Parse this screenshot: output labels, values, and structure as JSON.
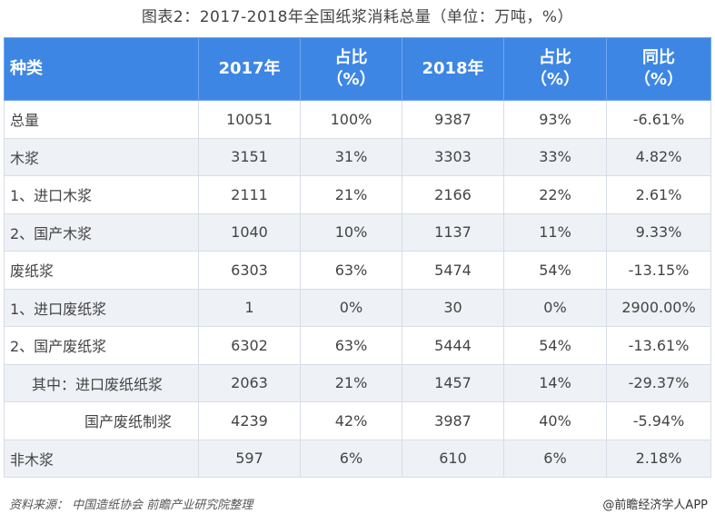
{
  "title": "图表2：2017-2018年全国纸浆消耗总量（单位：万吨，%）",
  "headers": [
    {
      "l1": "种类",
      "l2": ""
    },
    {
      "l1": "2017年",
      "l2": ""
    },
    {
      "l1": "占比",
      "l2": "（%）"
    },
    {
      "l1": "2018年",
      "l2": ""
    },
    {
      "l1": "占比",
      "l2": "（%）"
    },
    {
      "l1": "同比",
      "l2": "（%）"
    }
  ],
  "rows": [
    {
      "name": "总量",
      "v2017": "10051",
      "p2017": "100%",
      "v2018": "9387",
      "p2018": "93%",
      "yoy": "-6.61%"
    },
    {
      "name": "木浆",
      "v2017": "3151",
      "p2017": "31%",
      "v2018": "3303",
      "p2018": "33%",
      "yoy": "4.82%"
    },
    {
      "name": "1、进口木浆",
      "v2017": "2111",
      "p2017": "21%",
      "v2018": "2166",
      "p2018": "22%",
      "yoy": "2.61%"
    },
    {
      "name": "2、国产木浆",
      "v2017": "1040",
      "p2017": "10%",
      "v2018": "1137",
      "p2018": "11%",
      "yoy": "9.33%"
    },
    {
      "name": "废纸浆",
      "v2017": "6303",
      "p2017": "63%",
      "v2018": "5474",
      "p2018": "54%",
      "yoy": "-13.15%"
    },
    {
      "name": "1、进口废纸浆",
      "v2017": "1",
      "p2017": "0%",
      "v2018": "30",
      "p2018": "0%",
      "yoy": "2900.00%"
    },
    {
      "name": "2、国产废纸浆",
      "v2017": "6302",
      "p2017": "63%",
      "v2018": "5444",
      "p2018": "54%",
      "yoy": "-13.61%"
    },
    {
      "name": "其中：进口废纸纸浆",
      "v2017": "2063",
      "p2017": "21%",
      "v2018": "1457",
      "p2018": "14%",
      "yoy": "-29.37%"
    },
    {
      "name": "国产废纸制浆",
      "v2017": "4239",
      "p2017": "42%",
      "v2018": "3987",
      "p2018": "40%",
      "yoy": "-5.94%"
    },
    {
      "name": "非木浆",
      "v2017": "597",
      "p2017": "6%",
      "v2018": "610",
      "p2018": "6%",
      "yoy": "2.18%"
    }
  ],
  "footer": {
    "source": "资料来源：  中国造纸协会 前瞻产业研究院整理",
    "brand": "@前瞻经济学人APP"
  }
}
